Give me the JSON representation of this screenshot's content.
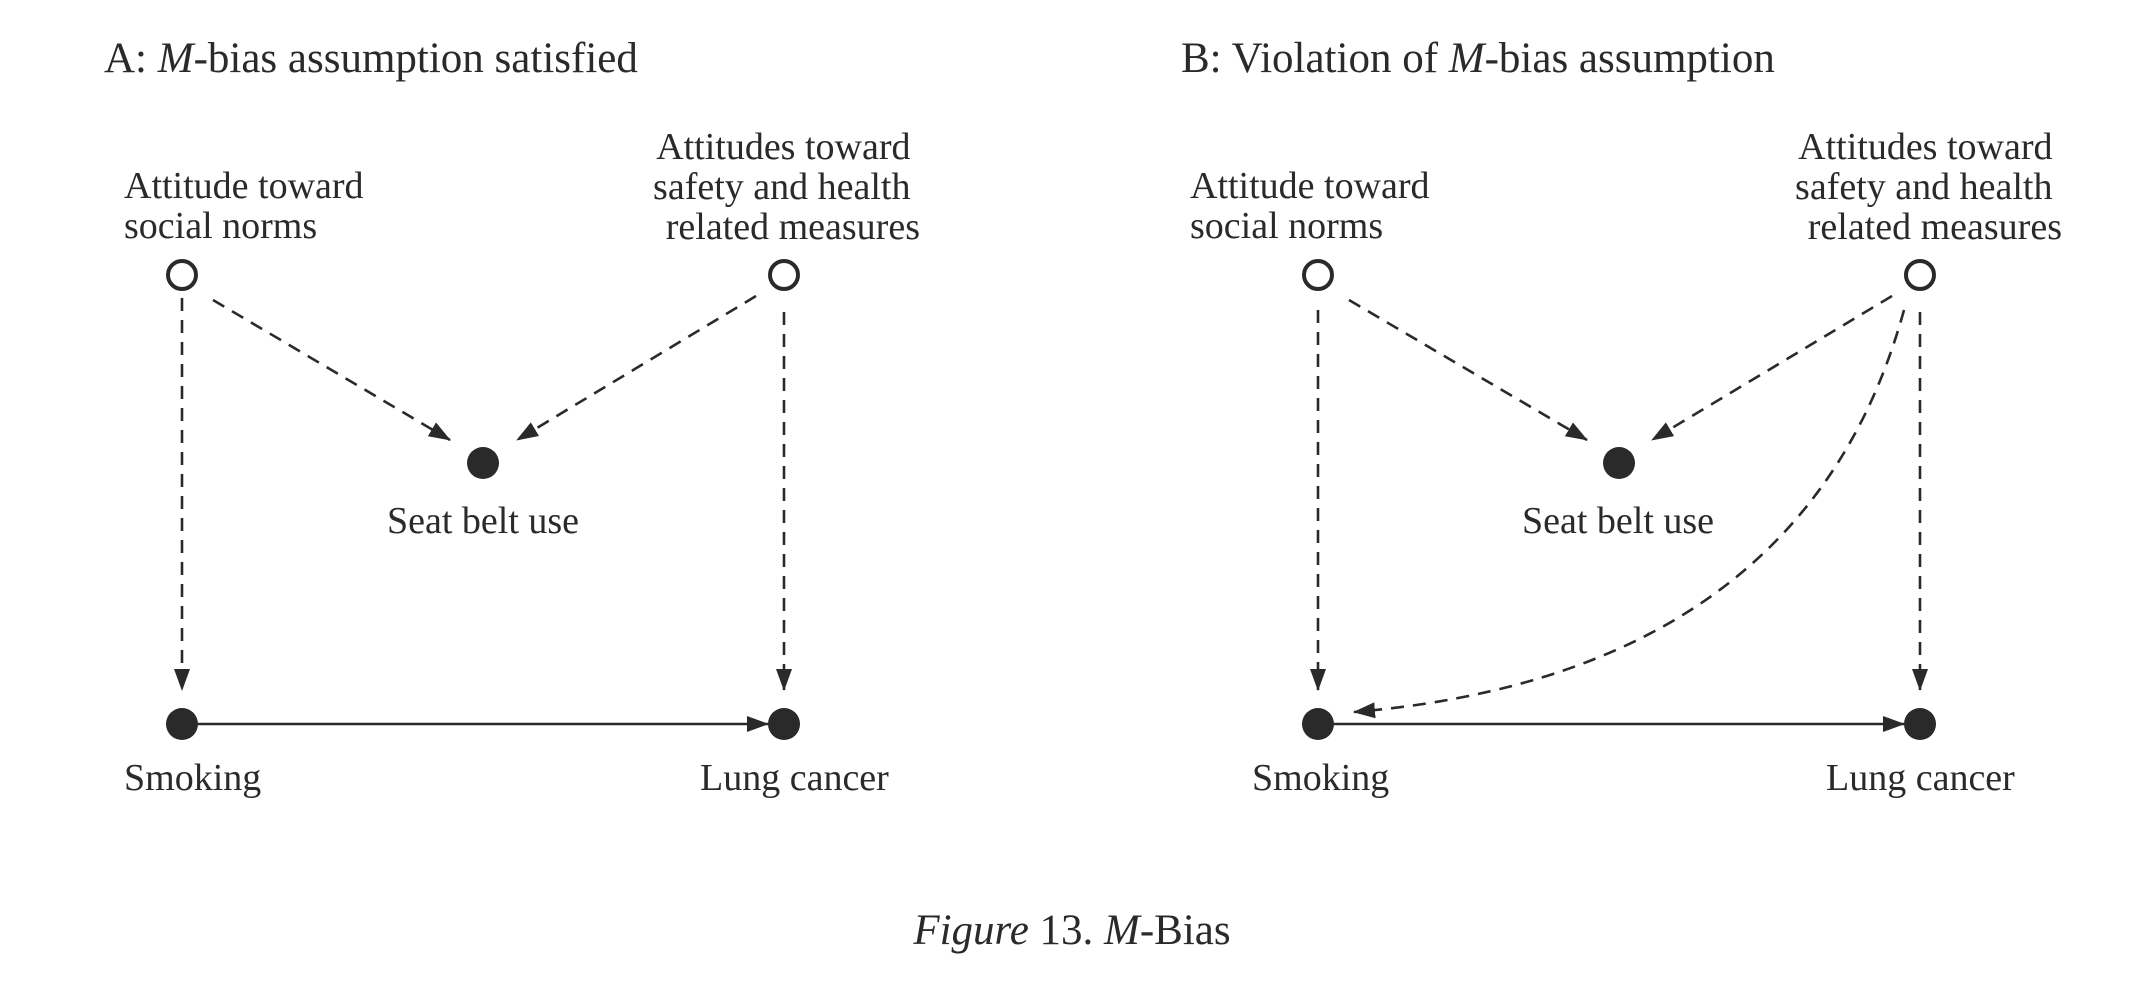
{
  "panel_a": {
    "title_prefix": "A: ",
    "title_var": "M",
    "title_suffix": "-bias assumption satisfied",
    "nodes": {
      "social_norms": [
        "Attitude toward",
        "social norms"
      ],
      "safety_health": [
        "Attitudes toward",
        "safety and health",
        "related measures"
      ],
      "seat_belt": "Seat belt use",
      "smoking": "Smoking",
      "lung_cancer": "Lung cancer"
    }
  },
  "panel_b": {
    "title_prefix": "B: Violation of ",
    "title_var": "M",
    "title_suffix": "-bias assumption",
    "nodes": {
      "social_norms": [
        "Attitude toward",
        "social norms"
      ],
      "safety_health": [
        "Attitudes toward",
        "safety and health",
        "related measures"
      ],
      "seat_belt": "Seat belt use",
      "smoking": "Smoking",
      "lung_cancer": "Lung cancer"
    }
  },
  "caption": {
    "figure_word": "Figure",
    "number": " 13. ",
    "var": "M",
    "suffix": "-Bias"
  }
}
